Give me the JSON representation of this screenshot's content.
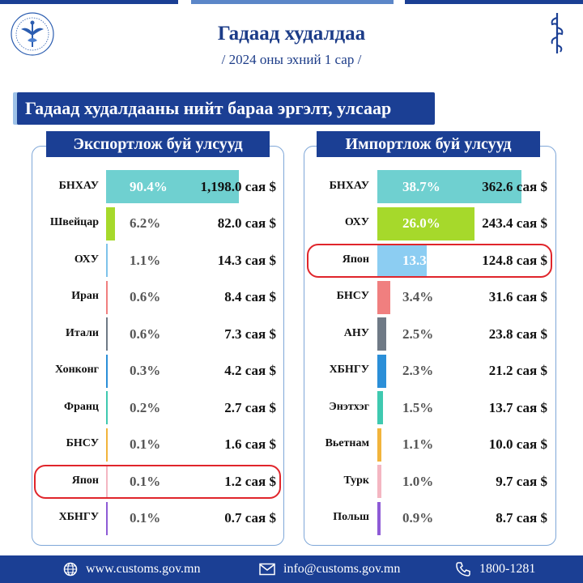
{
  "header": {
    "title": "Гадаад худалдаа",
    "subtitle": "/ 2024 оны эхний  1 сар /",
    "banner": "Гадаад худалдааны нийт бараа эргэлт, улсаар"
  },
  "chart_data": [
    {
      "type": "bar",
      "orientation": "horizontal",
      "title": "Экспортлож буй улсууд",
      "categories": [
        "БНХАУ",
        "Швейцар",
        "ОХУ",
        "Иран",
        "Итали",
        "Хонконг",
        "Франц",
        "БНСУ",
        "Япон",
        "ХБНГУ"
      ],
      "percent_labels": [
        "90.4%",
        "6.2%",
        "1.1%",
        "0.6%",
        "0.6%",
        "0.3%",
        "0.2%",
        "0.1%",
        "0.1%",
        "0.1%"
      ],
      "value_labels": [
        "1,198.0 сая $",
        "82.0 сая $",
        "14.3 сая $",
        "8.4 сая $",
        "7.3 сая $",
        "4.2 сая $",
        "2.7 сая $",
        "1.6 сая $",
        "1.2 сая $",
        "0.7 сая $"
      ],
      "values": [
        90.4,
        6.2,
        1.1,
        0.6,
        0.6,
        0.3,
        0.2,
        0.1,
        0.1,
        0.1
      ],
      "colors": [
        "#6fd0d0",
        "#a6d92b",
        "#7ec3ea",
        "#f07f7f",
        "#6f7a86",
        "#2b8fd8",
        "#3fc9b0",
        "#f2b43c",
        "#f4b6c2",
        "#8e5bd6"
      ],
      "highlighted": "Япон"
    },
    {
      "type": "bar",
      "orientation": "horizontal",
      "title": "Импортлож буй улсууд",
      "categories": [
        "БНХАУ",
        "ОХУ",
        "Япон",
        "БНСУ",
        "АНУ",
        "ХБНГУ",
        "Энэтхэг",
        "Вьетнам",
        "Турк",
        "Польш"
      ],
      "percent_labels": [
        "38.7%",
        "26.0%",
        "13.3%",
        "3.4%",
        "2.5%",
        "2.3%",
        "1.5%",
        "1.1%",
        "1.0%",
        "0.9%"
      ],
      "value_labels": [
        "362.6 сая $",
        "243.4 сая $",
        "124.8 сая $",
        "31.6 сая $",
        "23.8 сая $",
        "21.2 сая $",
        "13.7 сая $",
        "10.0 сая $",
        "9.7 сая $",
        "8.7 сая $"
      ],
      "values": [
        38.7,
        26.0,
        13.3,
        3.4,
        2.5,
        2.3,
        1.5,
        1.1,
        1.0,
        0.9
      ],
      "colors": [
        "#6fd0d0",
        "#a6d92b",
        "#8ccdf2",
        "#f07f7f",
        "#6f7a86",
        "#2b8fd8",
        "#3fc9b0",
        "#f2b43c",
        "#f4b6c2",
        "#8e5bd6"
      ],
      "highlighted": "Япон"
    }
  ],
  "footer": {
    "website": "www.customs.gov.mn",
    "email": "info@customs.gov.mn",
    "phone": "1800-1281"
  },
  "colors": {
    "primary": "#1b3f94",
    "title": "#1c3c88",
    "highlight": "#e0252b"
  }
}
